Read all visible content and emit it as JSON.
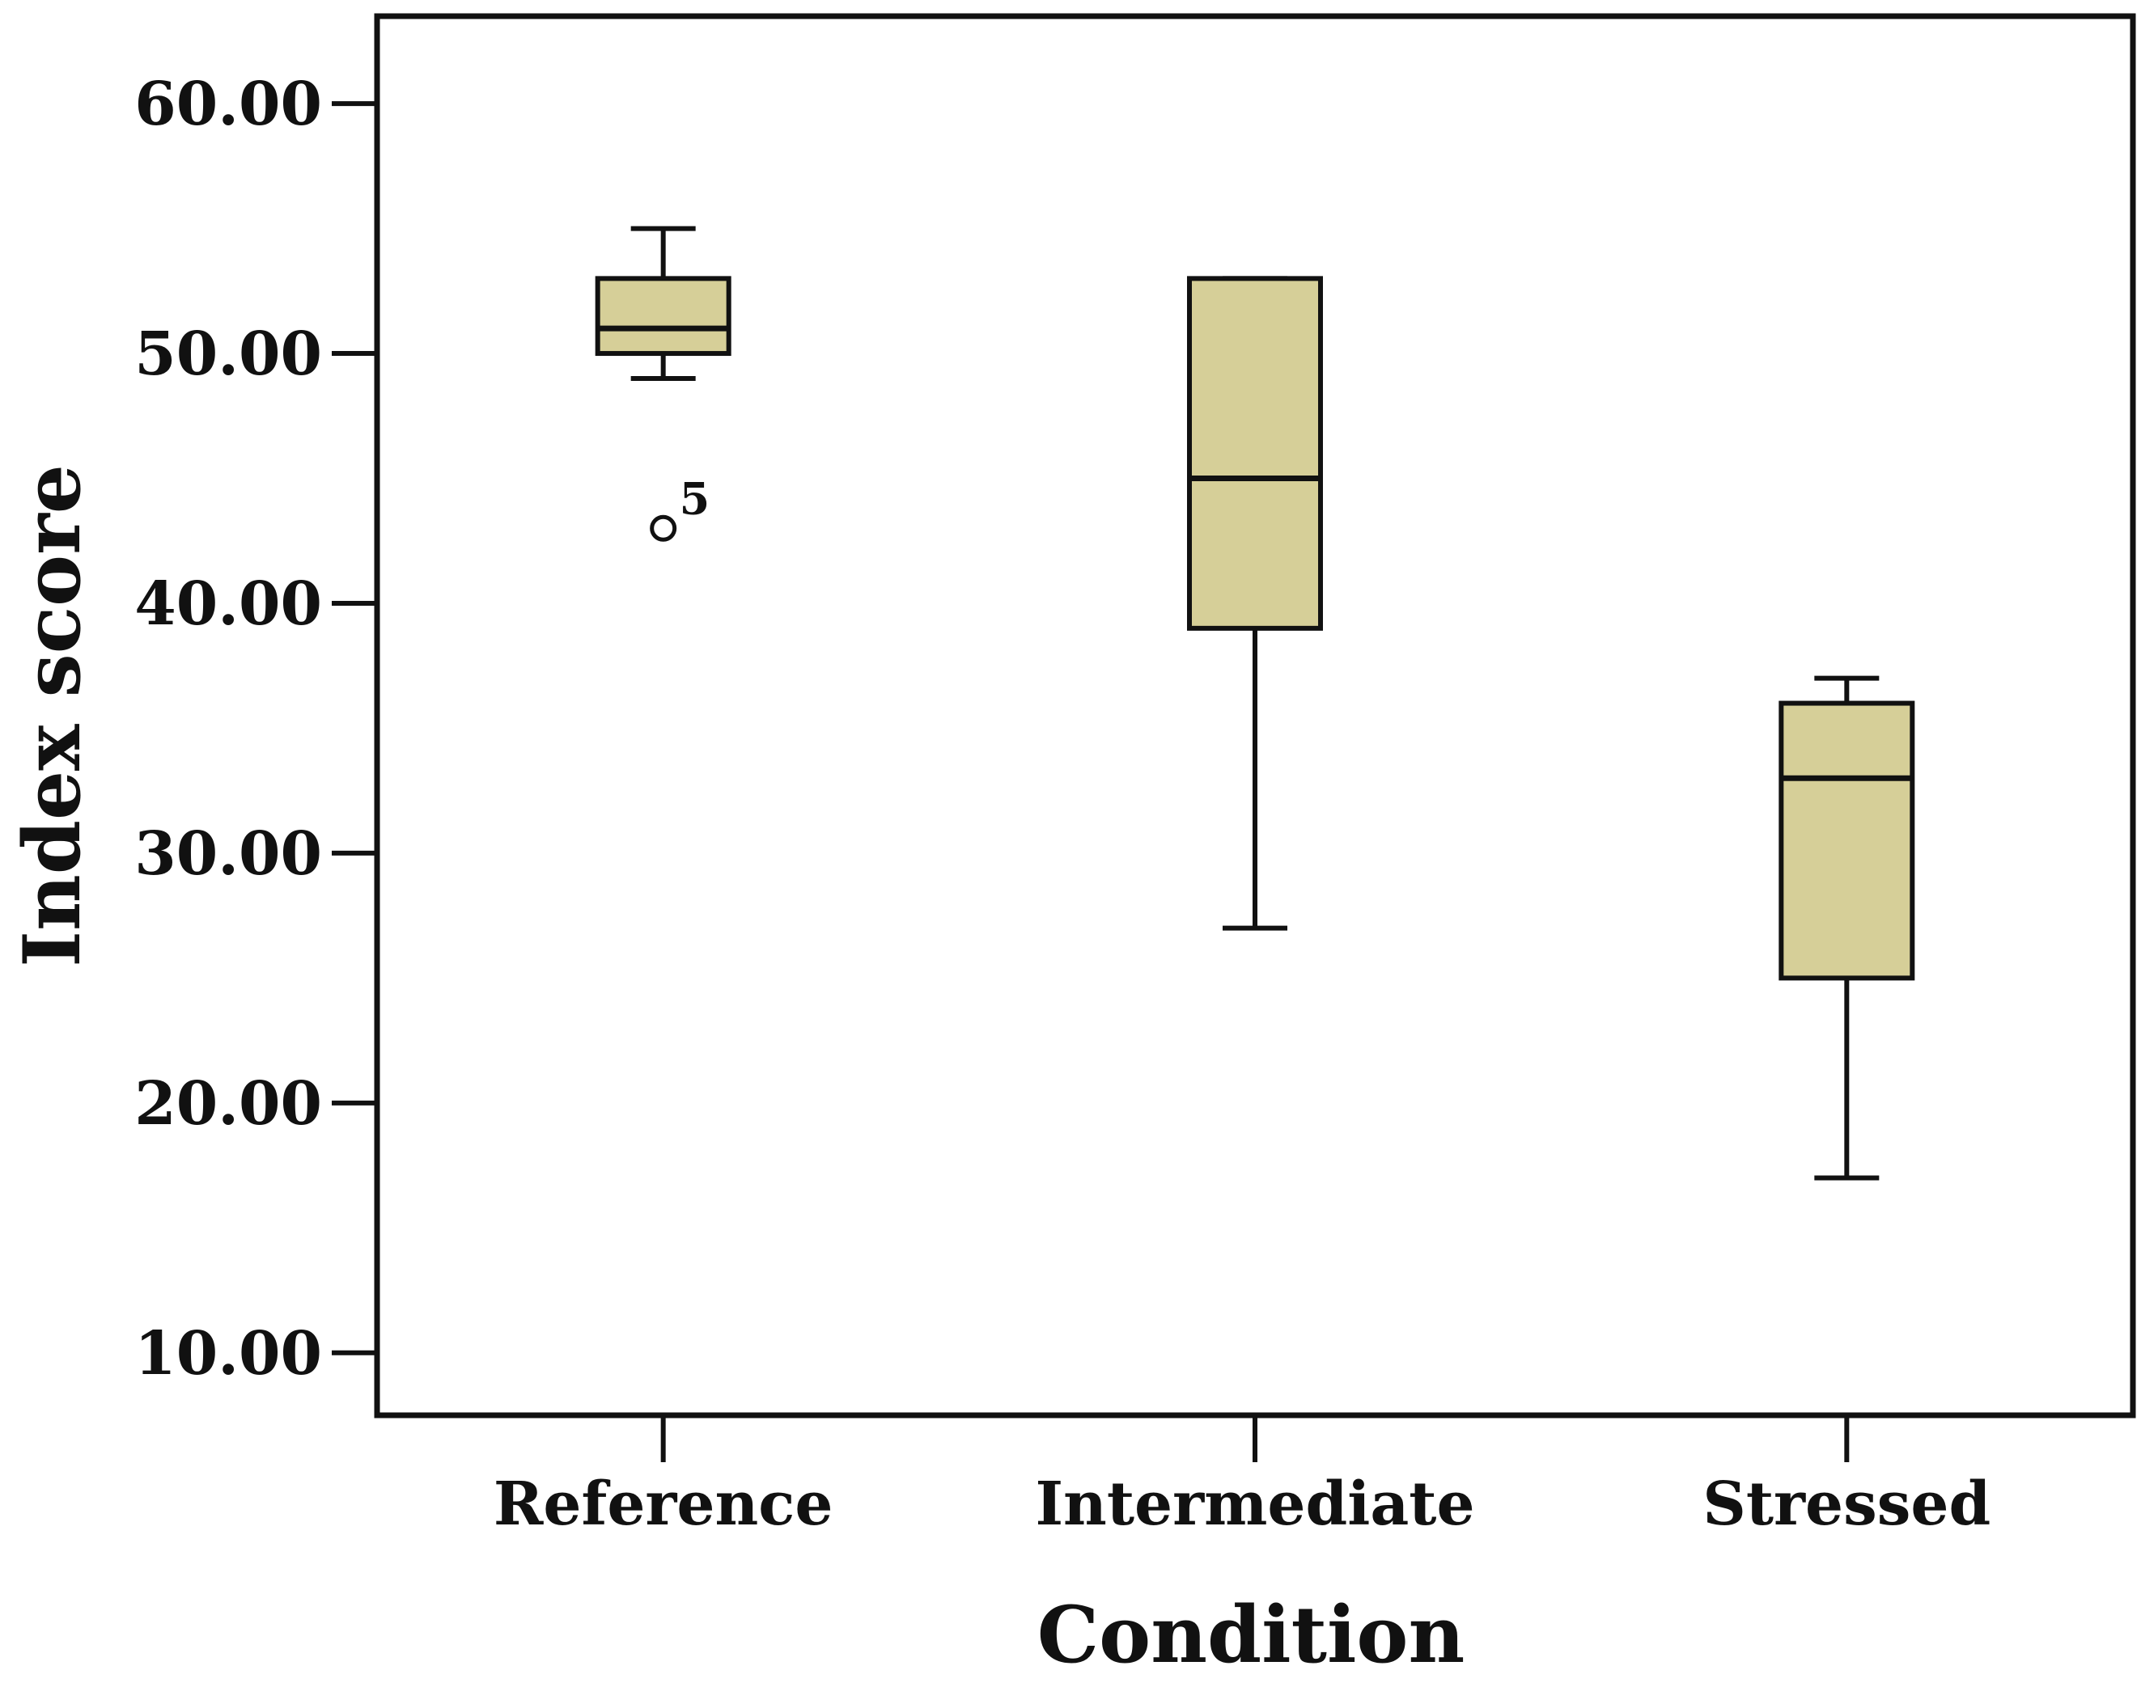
{
  "chart_data": {
    "type": "boxplot",
    "title": "",
    "xlabel": "Condition",
    "ylabel": "Index score",
    "ylim": [
      7.5,
      63.5
    ],
    "yticks": [
      10,
      20,
      30,
      40,
      50,
      60
    ],
    "ytick_labels": [
      "10.00",
      "20.00",
      "30.00",
      "40.00",
      "50.00",
      "60.00"
    ],
    "categories": [
      "Reference",
      "Intermediate",
      "Stressed"
    ],
    "grid": false,
    "colors": {
      "box_fill": "#d6cf98",
      "stroke": "#111111",
      "background": "#ffffff"
    },
    "boxes": [
      {
        "category": "Reference",
        "whisker_low": 49,
        "q1": 50,
        "median": 51,
        "q3": 53,
        "whisker_high": 55,
        "outliers": [
          {
            "value": 43,
            "label": "5"
          }
        ]
      },
      {
        "category": "Intermediate",
        "whisker_low": 27,
        "q1": 39,
        "median": 45,
        "q3": 53,
        "whisker_high": 53,
        "outliers": []
      },
      {
        "category": "Stressed",
        "whisker_low": 17,
        "q1": 25,
        "median": 33,
        "q3": 36,
        "whisker_high": 37,
        "outliers": []
      }
    ]
  }
}
